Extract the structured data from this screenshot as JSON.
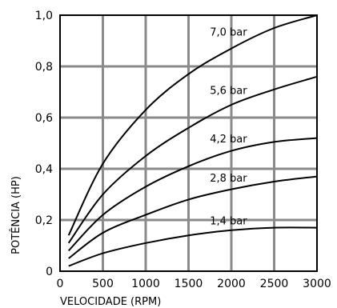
{
  "chart_data": {
    "type": "line",
    "xlabel": "VELOCIDADE (RPM)",
    "ylabel": "POTÊNCIA (HP)",
    "xlim": [
      0,
      3000
    ],
    "ylim": [
      0,
      1.0
    ],
    "grid": true,
    "x_ticks": [
      "0",
      "500",
      "1000",
      "1500",
      "2000",
      "2500",
      "3000"
    ],
    "y_ticks": [
      "0",
      "0,2",
      "0,4",
      "0,6",
      "0,8",
      "1,0"
    ],
    "series": [
      {
        "name": "7,0 bar",
        "x": [
          100,
          500,
          1000,
          1500,
          2000,
          2500,
          3000
        ],
        "y": [
          0.14,
          0.42,
          0.63,
          0.77,
          0.87,
          0.95,
          1.0
        ]
      },
      {
        "name": "5,6 bar",
        "x": [
          100,
          500,
          1000,
          1500,
          2000,
          2500,
          3000
        ],
        "y": [
          0.11,
          0.3,
          0.45,
          0.56,
          0.65,
          0.71,
          0.76
        ]
      },
      {
        "name": "4,2 bar",
        "x": [
          100,
          500,
          1000,
          1500,
          2000,
          2500,
          3000
        ],
        "y": [
          0.08,
          0.22,
          0.33,
          0.41,
          0.47,
          0.505,
          0.52
        ]
      },
      {
        "name": "2,8 bar",
        "x": [
          100,
          500,
          1000,
          1500,
          2000,
          2500,
          3000
        ],
        "y": [
          0.05,
          0.15,
          0.22,
          0.28,
          0.32,
          0.35,
          0.37
        ]
      },
      {
        "name": "1,4 bar",
        "x": [
          100,
          500,
          1000,
          1500,
          2000,
          2500,
          3000
        ],
        "y": [
          0.02,
          0.07,
          0.11,
          0.14,
          0.16,
          0.17,
          0.17
        ]
      }
    ]
  }
}
